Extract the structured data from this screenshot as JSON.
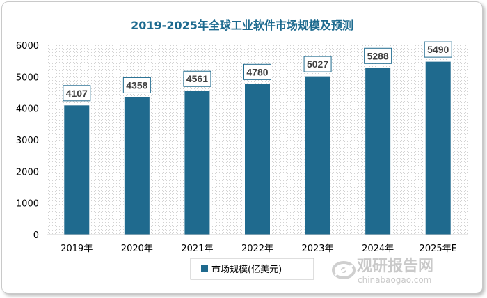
{
  "chart_data": {
    "type": "bar",
    "title": "2019-2025年全球工业软件市场规模及预测",
    "categories": [
      "2019年",
      "2020年",
      "2021年",
      "2022年",
      "2023年",
      "2024年",
      "2025年E"
    ],
    "series": [
      {
        "name": "市场规模(亿美元)",
        "values": [
          4107,
          4358,
          4561,
          4780,
          5027,
          5288,
          5490
        ]
      }
    ],
    "value_labels": [
      "4107",
      "4358",
      "4561",
      "4780",
      "5027",
      "5288",
      "5490"
    ],
    "ylim": [
      0,
      6000
    ],
    "yticks": [
      0,
      1000,
      2000,
      3000,
      4000,
      5000,
      6000
    ],
    "ytick_labels": [
      "0",
      "1000",
      "2000",
      "3000",
      "4000",
      "5000",
      "6000"
    ],
    "grid": false,
    "legend": "bottom-center",
    "colors": {
      "bar": "#1f6a8e",
      "title": "#1d6a8f"
    }
  },
  "watermark": {
    "text_cn": "观研报告网",
    "text_en": "chinabaogao.com"
  }
}
